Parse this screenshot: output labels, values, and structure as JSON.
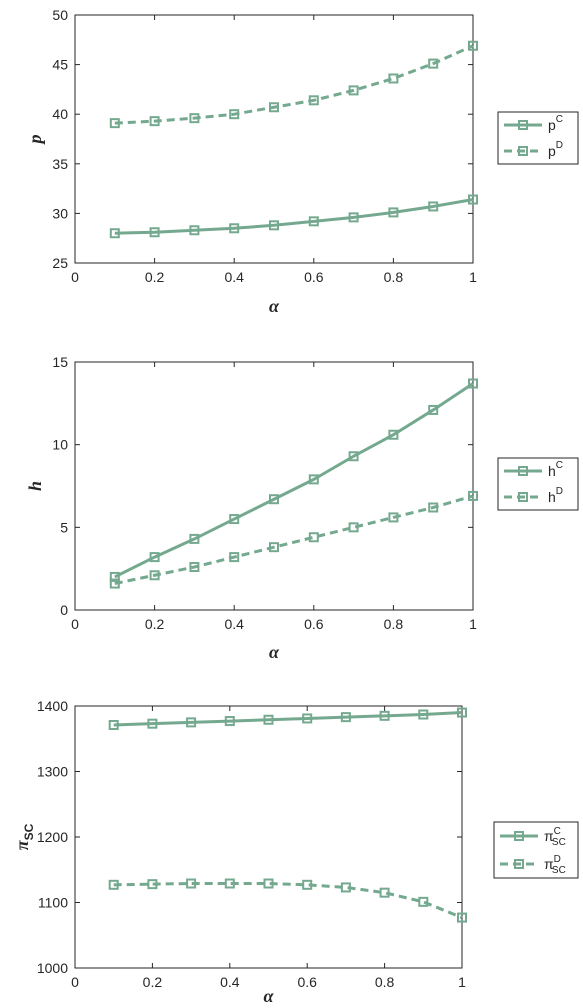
{
  "chart_data": [
    {
      "type": "line",
      "xlabel": "α",
      "ylabel": "p",
      "xlim": [
        0,
        1
      ],
      "ylim": [
        25,
        50
      ],
      "xticks": [
        "0",
        "0.2",
        "0.4",
        "0.6",
        "0.8",
        "1"
      ],
      "yticks": [
        "25",
        "30",
        "35",
        "40",
        "45",
        "50"
      ],
      "x": [
        0.1,
        0.2,
        0.3,
        0.4,
        0.5,
        0.6,
        0.7,
        0.8,
        0.9,
        1.0
      ],
      "series": [
        {
          "base": "p",
          "sup": "C",
          "sub": "",
          "style": "solid",
          "values": [
            28.0,
            28.1,
            28.3,
            28.5,
            28.8,
            29.2,
            29.6,
            30.1,
            30.7,
            31.4
          ]
        },
        {
          "base": "p",
          "sup": "D",
          "sub": "",
          "style": "dashed",
          "values": [
            39.1,
            39.3,
            39.6,
            40.0,
            40.7,
            41.4,
            42.4,
            43.6,
            45.1,
            46.9
          ]
        }
      ],
      "legend": "right",
      "grid": false
    },
    {
      "type": "line",
      "xlabel": "α",
      "ylabel": "h",
      "xlim": [
        0,
        1
      ],
      "ylim": [
        0,
        15
      ],
      "xticks": [
        "0",
        "0.2",
        "0.4",
        "0.6",
        "0.8",
        "1"
      ],
      "yticks": [
        "0",
        "5",
        "10",
        "15"
      ],
      "x": [
        0.1,
        0.2,
        0.3,
        0.4,
        0.5,
        0.6,
        0.7,
        0.8,
        0.9,
        1.0
      ],
      "series": [
        {
          "base": "h",
          "sup": "C",
          "sub": "",
          "style": "solid",
          "values": [
            2.0,
            3.2,
            4.3,
            5.5,
            6.7,
            7.9,
            9.3,
            10.6,
            12.1,
            13.7
          ]
        },
        {
          "base": "h",
          "sup": "D",
          "sub": "",
          "style": "dashed",
          "values": [
            1.6,
            2.1,
            2.6,
            3.2,
            3.8,
            4.4,
            5.0,
            5.6,
            6.2,
            6.9
          ]
        }
      ],
      "legend": "right",
      "grid": false
    },
    {
      "type": "line",
      "xlabel": "α",
      "ylabel": "π",
      "ylabel_sub": "SC",
      "xlim": [
        0,
        1
      ],
      "ylim": [
        1000,
        1400
      ],
      "xticks": [
        "0",
        "0.2",
        "0.4",
        "0.6",
        "0.8",
        "1"
      ],
      "yticks": [
        "1000",
        "1100",
        "1200",
        "1300",
        "1400"
      ],
      "x": [
        0.1,
        0.2,
        0.3,
        0.4,
        0.5,
        0.6,
        0.7,
        0.8,
        0.9,
        1.0
      ],
      "series": [
        {
          "base": "π",
          "sup": "C",
          "sub": "SC",
          "style": "solid",
          "values": [
            1371,
            1373,
            1375,
            1377,
            1379,
            1381,
            1383,
            1385,
            1387,
            1390
          ]
        },
        {
          "base": "π",
          "sup": "D",
          "sub": "SC",
          "style": "dashed",
          "values": [
            1127,
            1128,
            1129,
            1129,
            1129,
            1127,
            1123,
            1115,
            1101,
            1077
          ]
        }
      ],
      "legend": "right",
      "grid": false
    }
  ],
  "colors": {
    "line": "#74a98f",
    "axis": "#262626",
    "background": "#ffffff"
  }
}
